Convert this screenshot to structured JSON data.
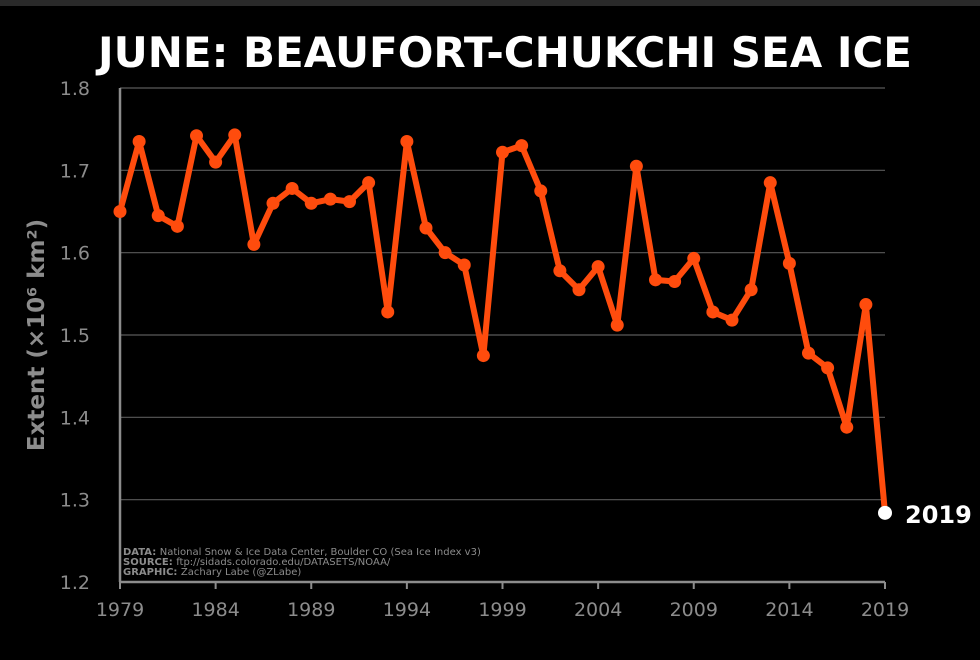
{
  "chart_data": {
    "type": "line",
    "title": "JUNE: BEAUFORT-CHUKCHI SEA ICE",
    "ylabel": "Extent (×10⁶ km²)",
    "xlim": [
      1979,
      2019
    ],
    "ylim": [
      1.2,
      1.8
    ],
    "yticks": [
      "1.2",
      "1.3",
      "1.4",
      "1.5",
      "1.6",
      "1.7",
      "1.8"
    ],
    "xticks": [
      "1979",
      "1984",
      "1989",
      "1994",
      "1999",
      "2004",
      "2009",
      "2014",
      "2019"
    ],
    "grid": true,
    "line_color": "#ff4c0d",
    "highlight_color": "#ffffff",
    "series": [
      {
        "x": [
          1979,
          1980,
          1981,
          1982,
          1983,
          1984,
          1985,
          1986,
          1987,
          1988,
          1989,
          1990,
          1991,
          1992,
          1993,
          1994,
          1995,
          1996,
          1997,
          1998,
          1999,
          2000,
          2001,
          2002,
          2003,
          2004,
          2005,
          2006,
          2007,
          2008,
          2009,
          2010,
          2011,
          2012,
          2013,
          2014,
          2015,
          2016,
          2017,
          2018,
          2019
        ],
        "values": [
          1.65,
          1.735,
          1.645,
          1.632,
          1.742,
          1.71,
          1.743,
          1.61,
          1.66,
          1.678,
          1.66,
          1.665,
          1.662,
          1.685,
          1.528,
          1.735,
          1.63,
          1.6,
          1.585,
          1.475,
          1.722,
          1.73,
          1.675,
          1.578,
          1.555,
          1.583,
          1.512,
          1.705,
          1.567,
          1.565,
          1.593,
          1.528,
          1.518,
          1.555,
          1.685,
          1.587,
          1.478,
          1.46,
          1.388,
          1.537,
          1.284
        ]
      }
    ],
    "annotations": {
      "highlight_label": "2019",
      "credits": [
        {
          "key": "DATA:",
          "text": "National Snow & Ice Data Center, Boulder CO (Sea Ice Index v3)"
        },
        {
          "key": "SOURCE:",
          "text": "ftp://sidads.colorado.edu/DATASETS/NOAA/"
        },
        {
          "key": "GRAPHIC:",
          "text": "Zachary Labe (@ZLabe)"
        }
      ]
    }
  }
}
